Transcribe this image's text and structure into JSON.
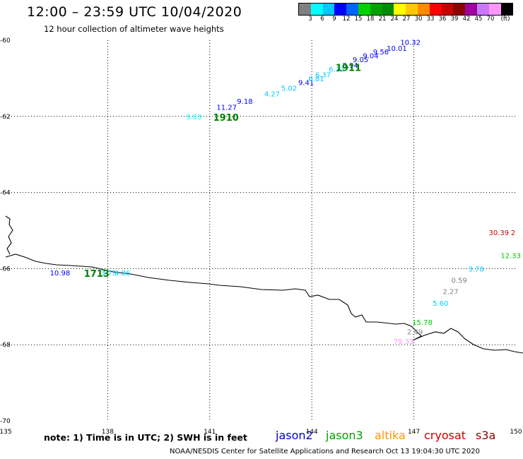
{
  "header": {
    "title": "12:00 – 23:59 UTC 10/04/2020",
    "subtitle": "12 hour collection of altimeter wave heights"
  },
  "colorbar": {
    "colors": [
      "#808080",
      "#00ffff",
      "#00c8ff",
      "#0000ff",
      "#0064ff",
      "#00d200",
      "#00a000",
      "#008c00",
      "#ffff00",
      "#ffc800",
      "#ff8c00",
      "#ff0000",
      "#c80000",
      "#8c0000",
      "#a000a0",
      "#c878ff",
      "#ff96ff",
      "#000000"
    ],
    "labels": [
      "3",
      "6",
      "9",
      "12",
      "15",
      "18",
      "21",
      "24",
      "27",
      "30",
      "33",
      "36",
      "39",
      "42",
      "45",
      "70",
      "(ft)"
    ]
  },
  "axes": {
    "lon_ticks": [
      "135",
      "138",
      "141",
      "144",
      "147",
      "150"
    ],
    "lat_ticks": [
      "-60",
      "-62",
      "-64",
      "-66",
      "-68",
      "-70"
    ]
  },
  "tracks": [
    {
      "label": "1910",
      "color": "#008000",
      "lon": 141.1,
      "lat": -62.0
    },
    {
      "label": "1911",
      "color": "#008000",
      "lon": 144.7,
      "lat": -60.7
    },
    {
      "label": "1713",
      "color": "#008000",
      "lon": 137.3,
      "lat": -66.1
    }
  ],
  "observations": [
    {
      "text": "3.83",
      "color": "#00ffff",
      "lon": 140.3,
      "lat": -62.0
    },
    {
      "text": "11.27",
      "color": "#0000ff",
      "lon": 141.2,
      "lat": -61.75
    },
    {
      "text": "9.18",
      "color": "#0000ff",
      "lon": 141.8,
      "lat": -61.6
    },
    {
      "text": "4.27",
      "color": "#00ccff",
      "lon": 142.6,
      "lat": -61.4
    },
    {
      "text": "5.02",
      "color": "#00ccff",
      "lon": 143.1,
      "lat": -61.25
    },
    {
      "text": "9.41",
      "color": "#0000ff",
      "lon": 143.6,
      "lat": -61.1
    },
    {
      "text": "6.81",
      "color": "#00ccff",
      "lon": 143.9,
      "lat": -61.0
    },
    {
      "text": "6.37",
      "color": "#00ccff",
      "lon": 144.1,
      "lat": -60.9
    },
    {
      "text": "6.32",
      "color": "#00ccff",
      "lon": 144.5,
      "lat": -60.75
    },
    {
      "text": "8.94",
      "color": "#0000ff",
      "lon": 144.9,
      "lat": -60.65
    },
    {
      "text": "9.05",
      "color": "#0000ff",
      "lon": 145.2,
      "lat": -60.5
    },
    {
      "text": "9.04",
      "color": "#0000ff",
      "lon": 145.5,
      "lat": -60.4
    },
    {
      "text": "9.56",
      "color": "#0000ff",
      "lon": 145.8,
      "lat": -60.3
    },
    {
      "text": "10.01",
      "color": "#0000ff",
      "lon": 146.2,
      "lat": -60.2
    },
    {
      "text": "10.32",
      "color": "#0000ff",
      "lon": 146.6,
      "lat": -60.05
    },
    {
      "text": "10.98",
      "color": "#0000ff",
      "lon": 136.3,
      "lat": -66.1
    },
    {
      "text": "3.73",
      "color": "#00ccff",
      "lon": 137.8,
      "lat": -66.1
    },
    {
      "text": "4.86",
      "color": "#00ccff",
      "lon": 138.2,
      "lat": -66.1
    },
    {
      "text": "30.39",
      "color": "#cc0000",
      "lon": 149.2,
      "lat": -65.05
    },
    {
      "text": "2",
      "color": "#cc0000",
      "lon": 149.85,
      "lat": -65.05
    },
    {
      "text": "12.33",
      "color": "#00c800",
      "lon": 149.55,
      "lat": -65.65
    },
    {
      "text": "3.78",
      "color": "#00ccff",
      "lon": 148.6,
      "lat": -66.0
    },
    {
      "text": "0.59",
      "color": "#808080",
      "lon": 148.1,
      "lat": -66.3
    },
    {
      "text": "2.27",
      "color": "#808080",
      "lon": 147.85,
      "lat": -66.6
    },
    {
      "text": "5.60",
      "color": "#00ccff",
      "lon": 147.55,
      "lat": -66.9
    },
    {
      "text": "15.78",
      "color": "#00c800",
      "lon": 146.95,
      "lat": -67.4
    },
    {
      "text": "2.49",
      "color": "#808080",
      "lon": 146.8,
      "lat": -67.65
    },
    {
      "text": "79.33",
      "color": "#ff96ff",
      "lon": 146.4,
      "lat": -67.9
    }
  ],
  "footer": {
    "note": "note:  1) Time is in UTC; 2) SWH is in feet",
    "credit": "NOAA/NESDIS Center for Satellite Applications and Research     Oct 13 19:04:30 UTC 2020"
  },
  "legend": [
    {
      "name": "jason2",
      "color": "#0000c8"
    },
    {
      "name": "jason3",
      "color": "#00a000"
    },
    {
      "name": "altika",
      "color": "#ff9600"
    },
    {
      "name": "cryosat",
      "color": "#c80000"
    },
    {
      "name": "s3a",
      "color": "#8c0000"
    }
  ]
}
